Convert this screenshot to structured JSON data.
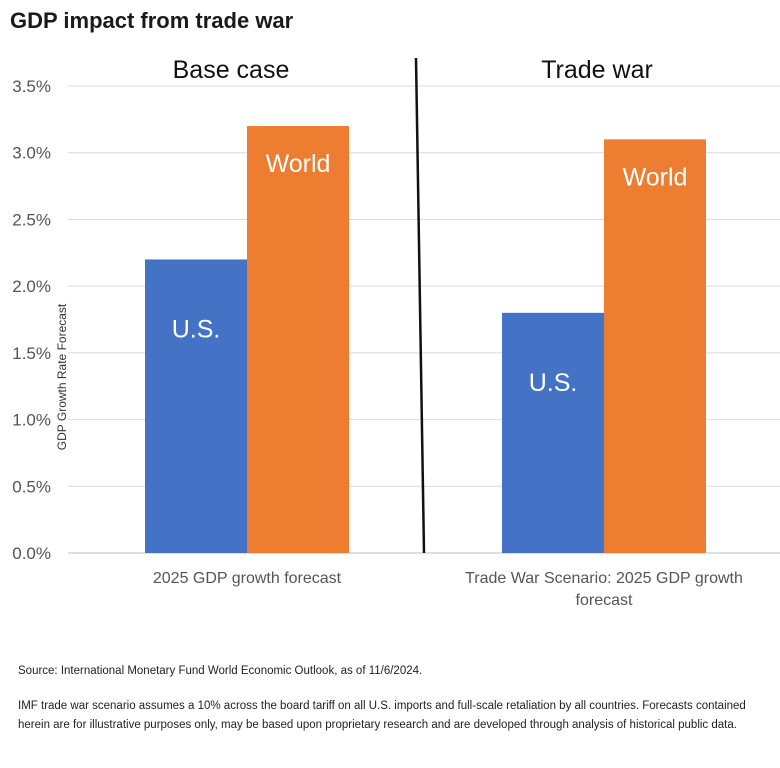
{
  "title": "GDP impact from trade war",
  "chart_data": {
    "type": "bar",
    "ylabel": "GDP Growth Rate Forecast",
    "ylim": [
      0,
      3.5
    ],
    "yticks": [
      "0.0%",
      "0.5%",
      "1.0%",
      "1.5%",
      "2.0%",
      "2.5%",
      "3.0%",
      "3.5%"
    ],
    "grid": true,
    "panels": [
      {
        "label": "Base case",
        "category": "2025 GDP growth forecast"
      },
      {
        "label": "Trade war",
        "category": "Trade War Scenario: 2025 GDP growth forecast"
      }
    ],
    "categories": [
      "2025 GDP growth forecast",
      "Trade War Scenario: 2025 GDP growth forecast"
    ],
    "series": [
      {
        "name": "U.S.",
        "color": "#4472c4",
        "values": [
          2.2,
          1.8
        ]
      },
      {
        "name": "World",
        "color": "#ed7d31",
        "values": [
          3.2,
          3.1
        ]
      }
    ]
  },
  "footer": {
    "source": "Source: International Monetary Fund World Economic Outlook, as of 11/6/2024.",
    "disclaimer": "IMF trade war scenario assumes a 10% across the board tariff on all U.S. imports and full-scale retaliation by all countries. Forecasts contained herein are for illustrative purposes only, may be based upon proprietary research and are developed through analysis of historical public data."
  }
}
